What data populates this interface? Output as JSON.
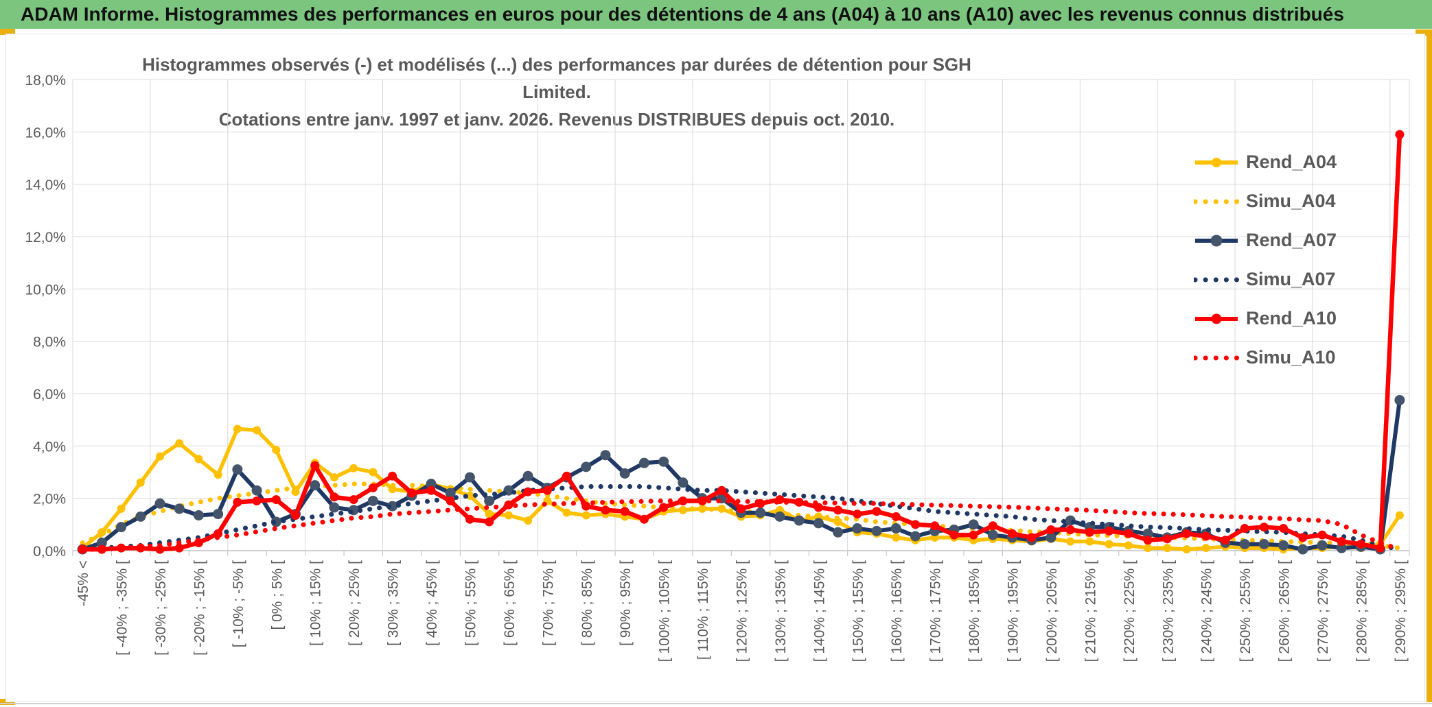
{
  "header": {
    "title": "ADAM Informe. Histogrammes des performances en euros pour des détentions de 4 ans (A04) à 10 ans (A10) avec les revenus connus distribués"
  },
  "chart": {
    "title_line1": "Histogrammes observés (-) et modélisés (...) des performances par durées de détention pour SGH Limited.",
    "title_line2": "Cotations entre janv. 1997 et janv. 2026. Revenus DISTRIBUES depuis oct. 2010."
  },
  "chart_data": {
    "type": "line",
    "title": "Histogrammes observés (-) et modélisés (...) des performances par durées de détention pour SGH Limited. Cotations entre janv. 1997 et janv. 2026. Revenus DISTRIBUES depuis oct. 2010.",
    "xlabel": "",
    "ylabel": "",
    "ylim_percent": [
      0,
      18
    ],
    "grid": true,
    "legend_position": "inside-right",
    "y_tick_labels": [
      "0,0%",
      "2,0%",
      "4,0%",
      "6,0%",
      "8,0%",
      "10,0%",
      "12,0%",
      "14,0%",
      "16,0%",
      "18,0%"
    ],
    "n_bins": 69,
    "x_label_interval": 2,
    "x_tick_labels": [
      "-45% <",
      "[ -40% ; -35% [",
      "[ -30% ; -25% [",
      "[ -20% ; -15% [",
      "[ -10% ; -5% [",
      "[ 0% ; 5% [",
      "[ 10% ; 15% [",
      "[ 20% ; 25% [",
      "[ 30% ; 35% [",
      "[ 40% ; 45% [",
      "[ 50% ; 55% [",
      "[ 60% ; 65% [",
      "[ 70% ; 75% [",
      "[ 80% ; 85% [",
      "[ 90% ; 95% [",
      "[ 100% ; 105% [",
      "[ 110% ; 115% [",
      "[ 120% ; 125% [",
      "[ 130% ; 135% [",
      "[ 140% ; 145% [",
      "[ 150% ; 155% [",
      "[ 160% ; 165% [",
      "[ 170% ; 175% [",
      "[ 180% ; 185% [",
      "[ 190% ; 195% [",
      "[ 200% ; 205% [",
      "[ 210% ; 215% [",
      "[ 220% ; 225% [",
      "[ 230% ; 235% [",
      "[ 240% ; 245% [",
      "[ 250% ; 255% [",
      "[ 260% ; 265% [",
      "[ 270% ; 275% [",
      "[ 280% ; 285% [",
      "[ 290% ; 295% ["
    ],
    "colors": {
      "gold": "#FFC000",
      "navy": "#1F3864",
      "navy_marker": "#44546A",
      "red": "#FF0000",
      "gridline": "#D9D9D9",
      "axis": "#BFBFBF",
      "text": "#595959",
      "header_green": "#7CC57F",
      "accent_gold": "#E9AF0B"
    },
    "series": [
      {
        "name": "Rend_A04",
        "style": "solid",
        "color": "#FFC000",
        "marker_color": "#FFC000",
        "line_width": 5.5,
        "marker_r": 6,
        "values_percent": [
          0.1,
          0.7,
          1.6,
          2.6,
          3.6,
          4.1,
          3.5,
          2.9,
          4.65,
          4.6,
          3.85,
          2.25,
          3.35,
          2.8,
          3.15,
          3.0,
          2.35,
          2.25,
          2.55,
          2.35,
          2.1,
          1.4,
          1.35,
          1.15,
          1.9,
          1.45,
          1.35,
          1.4,
          1.3,
          1.2,
          1.5,
          1.55,
          1.6,
          1.6,
          1.3,
          1.35,
          1.55,
          1.15,
          1.3,
          1.1,
          0.7,
          0.65,
          0.5,
          0.4,
          0.5,
          0.5,
          0.4,
          0.45,
          0.4,
          0.35,
          0.45,
          0.35,
          0.35,
          0.25,
          0.2,
          0.1,
          0.1,
          0.05,
          0.1,
          0.15,
          0.1,
          0.1,
          0.05,
          0.1,
          0.1,
          0.15,
          0.1,
          0.25,
          1.35
        ]
      },
      {
        "name": "Simu_A04",
        "style": "dotted",
        "color": "#FFC000",
        "line_width": 7,
        "values_percent": [
          0.3,
          0.6,
          1.0,
          1.3,
          1.5,
          1.7,
          1.85,
          2.0,
          2.1,
          2.2,
          2.3,
          2.4,
          2.45,
          2.5,
          2.55,
          2.55,
          2.5,
          2.5,
          2.45,
          2.4,
          2.35,
          2.3,
          2.25,
          2.2,
          2.1,
          2.0,
          1.9,
          1.8,
          1.75,
          1.7,
          1.65,
          1.6,
          1.6,
          1.55,
          1.5,
          1.45,
          1.4,
          1.35,
          1.3,
          1.25,
          1.2,
          1.1,
          1.05,
          1.0,
          0.95,
          0.9,
          0.85,
          0.8,
          0.78,
          0.72,
          0.7,
          0.65,
          0.6,
          0.58,
          0.55,
          0.52,
          0.5,
          0.48,
          0.45,
          0.42,
          0.4,
          0.38,
          0.35,
          0.33,
          0.3,
          0.28,
          0.25,
          0.2,
          0.1
        ]
      },
      {
        "name": "Rend_A07",
        "style": "solid",
        "color": "#1F3864",
        "marker_color": "#44546A",
        "line_width": 6,
        "marker_r": 7.5,
        "values_percent": [
          0.05,
          0.3,
          0.9,
          1.3,
          1.8,
          1.6,
          1.35,
          1.4,
          3.1,
          2.3,
          1.1,
          1.4,
          2.5,
          1.65,
          1.55,
          1.9,
          1.7,
          2.1,
          2.55,
          2.2,
          2.8,
          1.9,
          2.3,
          2.85,
          2.4,
          2.8,
          3.2,
          3.65,
          2.95,
          3.35,
          3.4,
          2.6,
          2.0,
          2.0,
          1.45,
          1.45,
          1.3,
          1.15,
          1.05,
          0.7,
          0.85,
          0.75,
          0.85,
          0.55,
          0.75,
          0.8,
          1.0,
          0.6,
          0.5,
          0.4,
          0.5,
          1.15,
          0.9,
          0.9,
          0.75,
          0.65,
          0.5,
          0.7,
          0.65,
          0.3,
          0.25,
          0.25,
          0.2,
          0.05,
          0.2,
          0.1,
          0.15,
          0.05,
          5.75
        ]
      },
      {
        "name": "Simu_A07",
        "style": "dotted",
        "color": "#1F3864",
        "line_width": 7,
        "values_percent": [
          0.05,
          0.1,
          0.15,
          0.2,
          0.3,
          0.4,
          0.5,
          0.65,
          0.8,
          0.95,
          1.1,
          1.2,
          1.3,
          1.4,
          1.5,
          1.6,
          1.7,
          1.8,
          1.9,
          2.0,
          2.1,
          2.15,
          2.2,
          2.3,
          2.35,
          2.4,
          2.45,
          2.45,
          2.45,
          2.45,
          2.4,
          2.35,
          2.3,
          2.3,
          2.25,
          2.2,
          2.15,
          2.1,
          2.05,
          2.0,
          1.9,
          1.8,
          1.7,
          1.6,
          1.5,
          1.45,
          1.4,
          1.35,
          1.3,
          1.2,
          1.15,
          1.1,
          1.05,
          1.0,
          0.95,
          0.9,
          0.88,
          0.85,
          0.8,
          0.78,
          0.75,
          0.72,
          0.7,
          0.65,
          0.6,
          0.55,
          0.4,
          0.2,
          0.05
        ]
      },
      {
        "name": "Rend_A10",
        "style": "solid",
        "color": "#FF0000",
        "marker_color": "#FF0000",
        "line_width": 6.5,
        "marker_r": 6.5,
        "values_percent": [
          0.05,
          0.05,
          0.1,
          0.1,
          0.05,
          0.1,
          0.3,
          0.65,
          1.85,
          1.9,
          1.95,
          1.35,
          3.25,
          2.05,
          1.95,
          2.4,
          2.85,
          2.2,
          2.3,
          1.9,
          1.2,
          1.1,
          1.75,
          2.25,
          2.3,
          2.85,
          1.7,
          1.55,
          1.5,
          1.2,
          1.65,
          1.9,
          1.9,
          2.3,
          1.6,
          1.8,
          1.95,
          1.85,
          1.65,
          1.55,
          1.4,
          1.5,
          1.3,
          1.0,
          0.95,
          0.6,
          0.6,
          0.95,
          0.65,
          0.5,
          0.8,
          0.8,
          0.7,
          0.75,
          0.65,
          0.4,
          0.45,
          0.65,
          0.55,
          0.4,
          0.85,
          0.9,
          0.85,
          0.5,
          0.6,
          0.35,
          0.25,
          0.1,
          15.9
        ]
      },
      {
        "name": "Simu_A10",
        "style": "dotted",
        "color": "#FF0000",
        "line_width": 7,
        "values_percent": [
          0.05,
          0.05,
          0.1,
          0.15,
          0.2,
          0.3,
          0.4,
          0.5,
          0.6,
          0.72,
          0.85,
          0.95,
          1.05,
          1.15,
          1.25,
          1.3,
          1.4,
          1.45,
          1.5,
          1.55,
          1.6,
          1.65,
          1.7,
          1.75,
          1.78,
          1.8,
          1.82,
          1.85,
          1.87,
          1.88,
          1.9,
          1.9,
          1.9,
          1.9,
          1.88,
          1.87,
          1.85,
          1.84,
          1.83,
          1.82,
          1.8,
          1.8,
          1.78,
          1.76,
          1.74,
          1.72,
          1.7,
          1.68,
          1.66,
          1.63,
          1.6,
          1.57,
          1.54,
          1.5,
          1.45,
          1.42,
          1.4,
          1.37,
          1.34,
          1.3,
          1.28,
          1.25,
          1.22,
          1.18,
          1.15,
          1.0,
          0.6,
          0.3,
          0.05
        ]
      }
    ],
    "legend": [
      {
        "label": "Rend_A04"
      },
      {
        "label": "Simu_A04"
      },
      {
        "label": "Rend_A07"
      },
      {
        "label": "Simu_A07"
      },
      {
        "label": "Rend_A10"
      },
      {
        "label": "Simu_A10"
      }
    ]
  }
}
